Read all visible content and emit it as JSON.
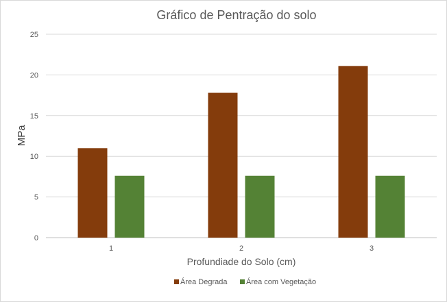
{
  "chart_data": {
    "type": "bar",
    "title": "Gráfico de Pentração do solo",
    "xlabel": "Profundiade do Solo (cm)",
    "ylabel": "MPa",
    "categories": [
      "1",
      "2",
      "3"
    ],
    "ylim": [
      0,
      25
    ],
    "yticks": [
      0,
      5,
      10,
      15,
      20,
      25
    ],
    "grid": true,
    "legend_position": "bottom",
    "series": [
      {
        "name": "Área Degrada",
        "color": "#843C0C",
        "values": [
          11.0,
          17.8,
          21.1
        ]
      },
      {
        "name": "Área com Vegetação",
        "color": "#548235",
        "values": [
          7.6,
          7.6,
          7.6
        ]
      }
    ]
  }
}
